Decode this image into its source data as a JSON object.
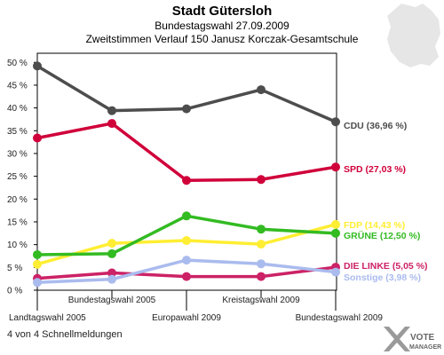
{
  "chart_data": {
    "type": "line",
    "title": "Stadt Gütersloh",
    "subtitle1": "Bundestagswahl 27.09.2009",
    "subtitle2": "Zweitstimmen Verlauf 150 Janusz Korczak-Gesamtschule",
    "categories": [
      "Landtagswahl 2005",
      "Bundestagswahl 2005",
      "Europawahl 2009",
      "Kreistagswahl 2009",
      "Bundestagswahl 2009"
    ],
    "ylim": [
      0,
      52
    ],
    "yticks": [
      0,
      5,
      10,
      15,
      20,
      25,
      30,
      35,
      40,
      45,
      50
    ],
    "ytick_labels": [
      "0 %",
      "5 %",
      "10 %",
      "15 %",
      "20 %",
      "25 %",
      "30 %",
      "35 %",
      "40 %",
      "45 %",
      "50 %"
    ],
    "series": [
      {
        "name": "CDU",
        "color": "#4d4d4d",
        "values": [
          49.2,
          39.4,
          39.8,
          44.0,
          36.96
        ],
        "label": "CDU (36,96 %)"
      },
      {
        "name": "SPD",
        "color": "#d0003a",
        "values": [
          33.4,
          36.6,
          24.1,
          24.3,
          27.03
        ],
        "label": "SPD (27,03 %)"
      },
      {
        "name": "FDP",
        "color": "#ffee33",
        "values": [
          5.7,
          10.3,
          10.9,
          10.1,
          14.43
        ],
        "label": "FDP (14,43 %)"
      },
      {
        "name": "GRÜNE",
        "color": "#33bb22",
        "values": [
          7.8,
          8.0,
          16.3,
          13.4,
          12.5
        ],
        "label": "GRÜNE (12,50 %)"
      },
      {
        "name": "DIE LINKE",
        "color": "#cc2266",
        "values": [
          2.6,
          3.8,
          3.0,
          3.0,
          5.05
        ],
        "label": "DIE LINKE (5,05 %)"
      },
      {
        "name": "Sonstige",
        "color": "#aabbee",
        "values": [
          1.7,
          2.4,
          6.6,
          5.8,
          3.98
        ],
        "label": "Sonstige (3,98 %)"
      }
    ],
    "grid": false,
    "legend": "right end labels"
  },
  "footer": "4 von 4 Schnellmeldungen",
  "logo": {
    "line1": "VOTE",
    "line2": "MANAGER"
  }
}
